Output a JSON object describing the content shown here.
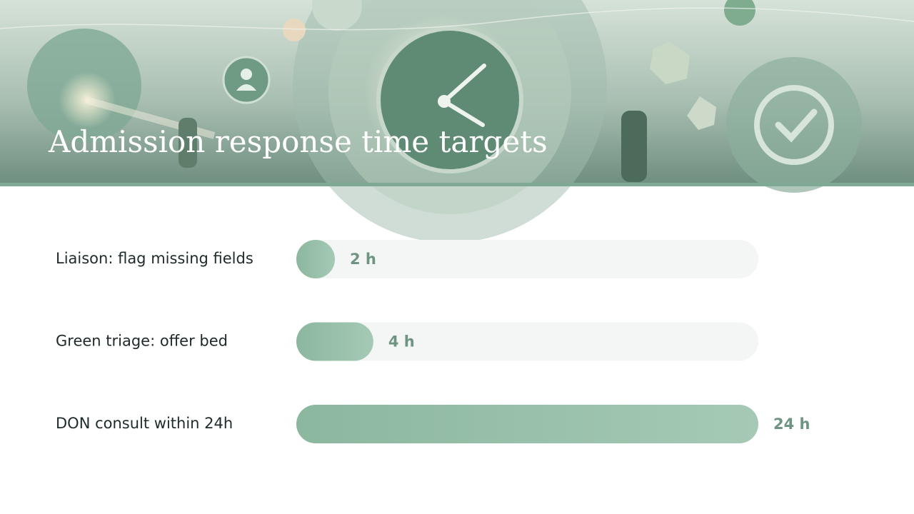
{
  "chart_data": {
    "type": "barh",
    "title": "Admission response time targets",
    "categories": [
      "Liaison: flag missing fields",
      "Green triage: offer bed",
      "DON consult within 24h"
    ],
    "values": [
      2,
      4,
      24
    ],
    "value_labels": [
      "2 h",
      "4 h",
      "24 h"
    ],
    "xlim": [
      0,
      24
    ],
    "color": "#8fb9a2"
  }
}
